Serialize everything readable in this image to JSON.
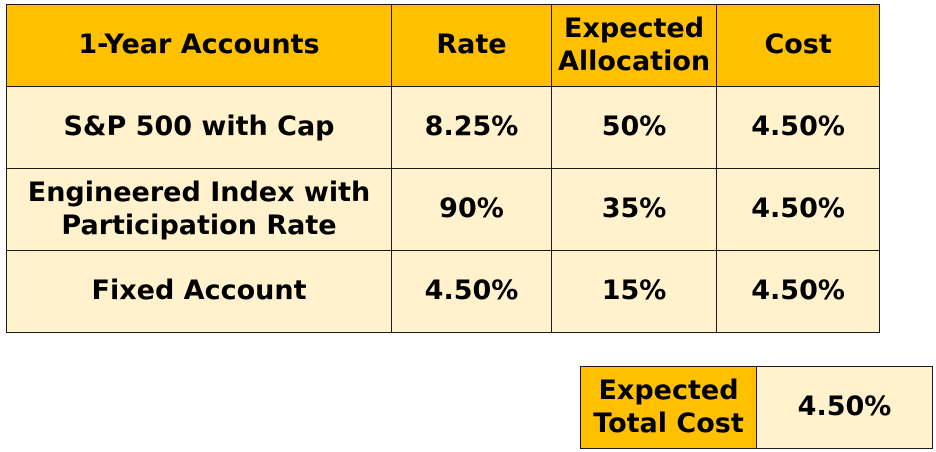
{
  "table": {
    "headers": [
      "1-Year Accounts",
      "Rate",
      "Expected Allocation",
      "Cost"
    ],
    "rows": [
      [
        "S&P 500 with Cap",
        "8.25%",
        "50%",
        "4.50%"
      ],
      [
        "Engineered Index with Participation Rate",
        "90%",
        "35%",
        "4.50%"
      ],
      [
        "Fixed Account",
        "4.50%",
        "15%",
        "4.50%"
      ]
    ]
  },
  "total": {
    "label": "Expected Total Cost",
    "value": "4.50%"
  },
  "colors": {
    "header_bg": "#ffc000",
    "cell_bg": "#fff2cc",
    "border": "#1a1a1a"
  }
}
